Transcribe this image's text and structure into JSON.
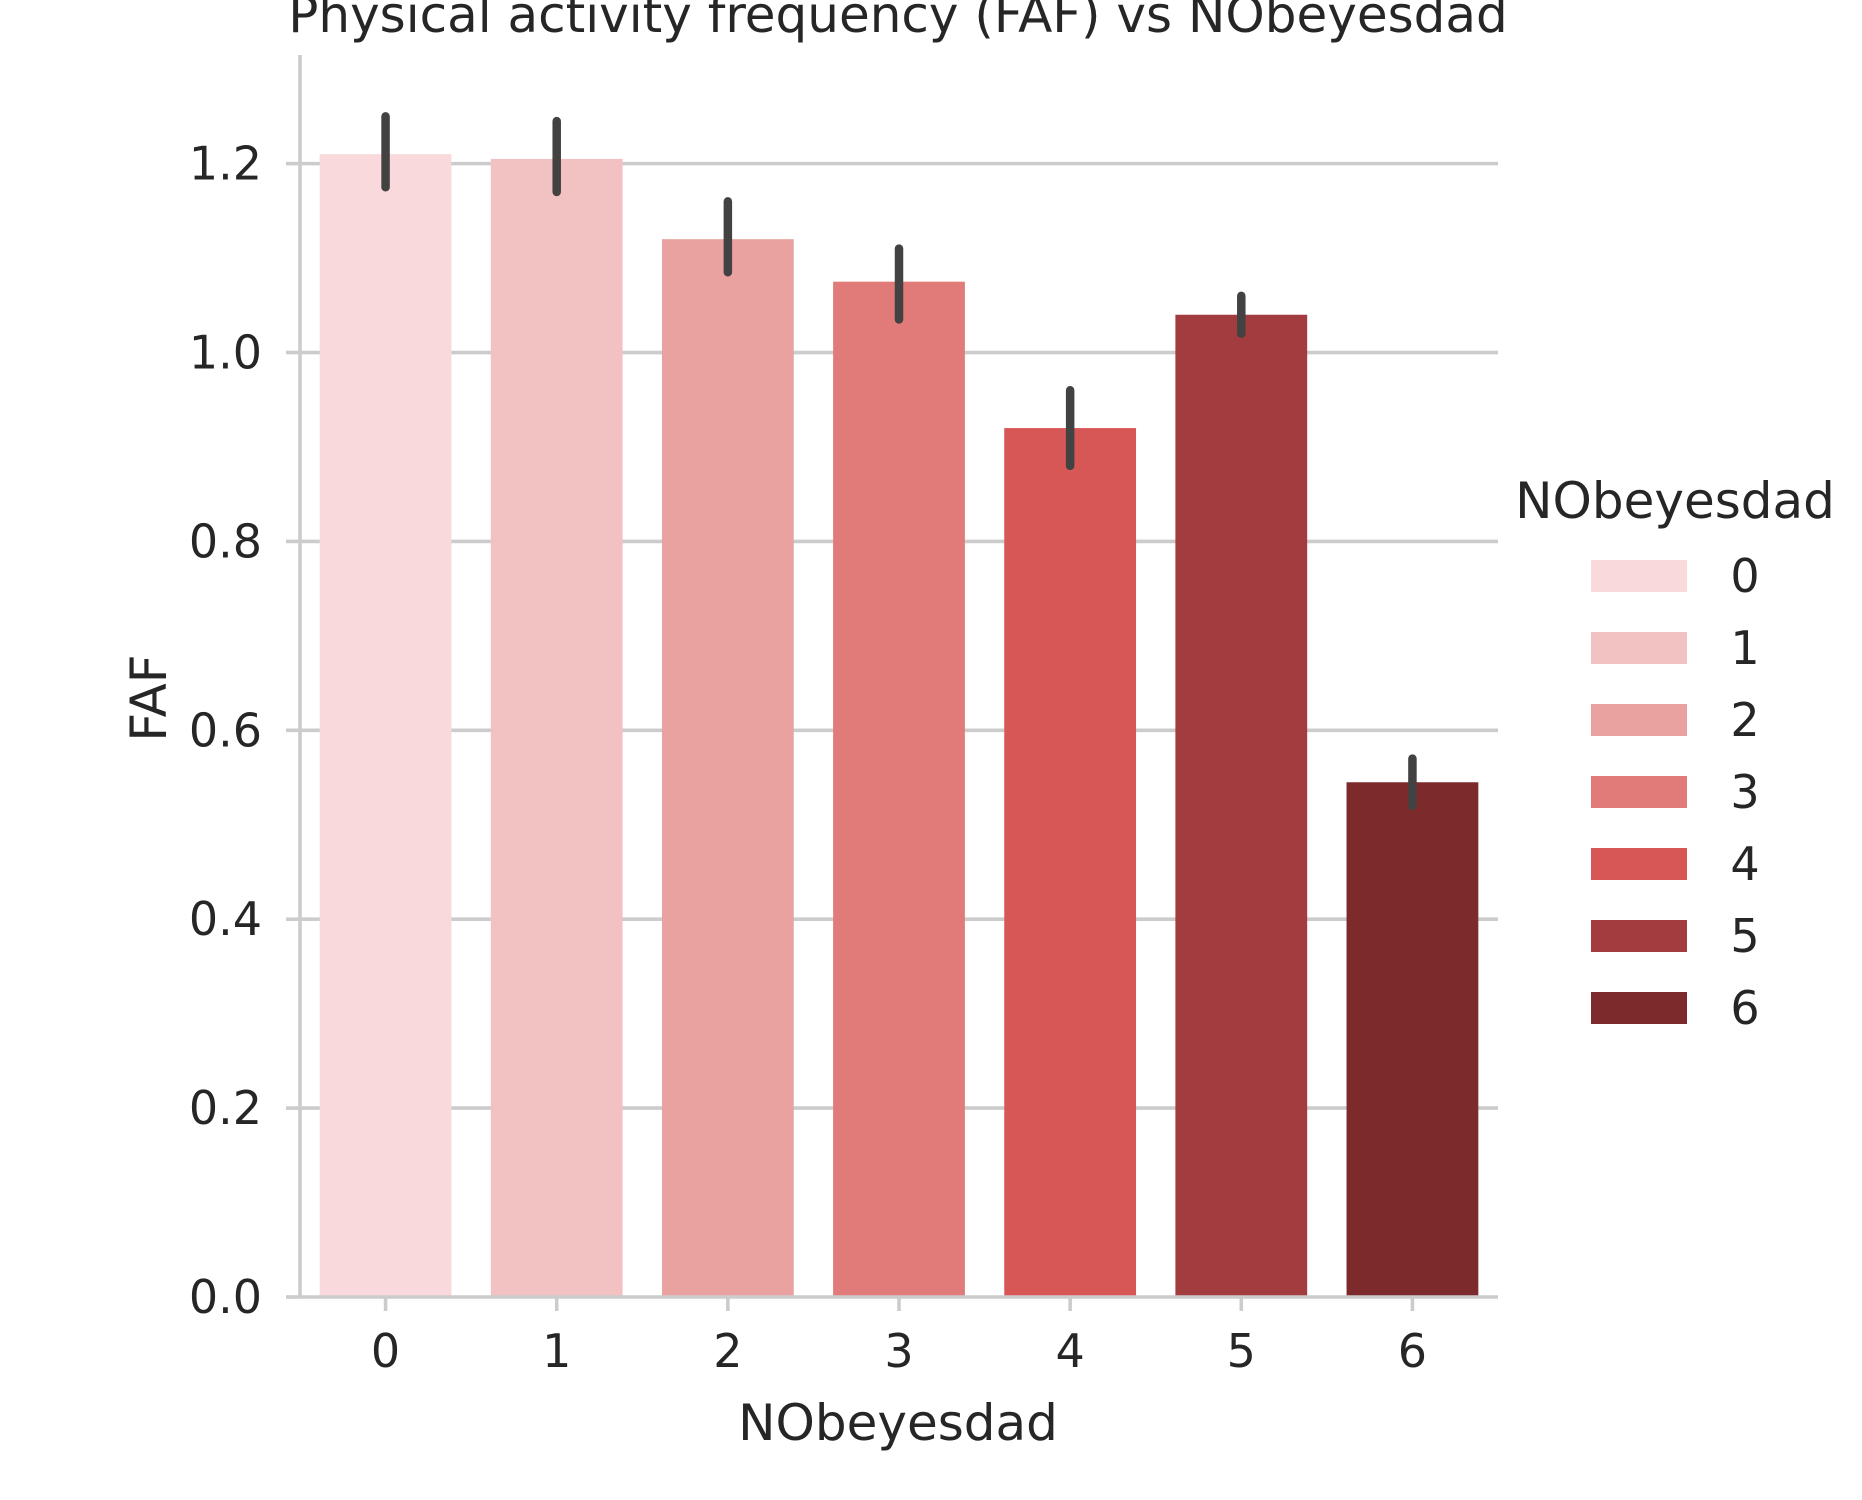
{
  "chart_data": {
    "type": "bar",
    "title": "Physical activity frequency (FAF) vs NObeyesdad",
    "xlabel": "NObeyesdad",
    "ylabel": "FAF",
    "categories": [
      "0",
      "1",
      "2",
      "3",
      "4",
      "5",
      "6"
    ],
    "values": [
      1.21,
      1.205,
      1.12,
      1.075,
      0.92,
      1.04,
      0.545
    ],
    "error_low": [
      1.175,
      1.17,
      1.085,
      1.035,
      0.88,
      1.02,
      0.52
    ],
    "error_high": [
      1.25,
      1.245,
      1.16,
      1.11,
      0.96,
      1.06,
      0.57
    ],
    "colors": [
      "#f9d9db",
      "#f2c1c1",
      "#e9a2a0",
      "#e07b7a",
      "#d75656",
      "#a33c3e",
      "#7c2a2c"
    ],
    "ylim": [
      0,
      1.315
    ],
    "yticks": [
      0.0,
      0.2,
      0.4,
      0.6,
      0.8,
      1.0,
      1.2
    ],
    "ytick_labels": [
      "0.0",
      "0.2",
      "0.4",
      "0.6",
      "0.8",
      "1.0",
      "1.2"
    ],
    "grid": true,
    "legend": {
      "title": "NObeyesdad",
      "placement": "right",
      "entries": [
        "0",
        "1",
        "2",
        "3",
        "4",
        "5",
        "6"
      ]
    }
  }
}
